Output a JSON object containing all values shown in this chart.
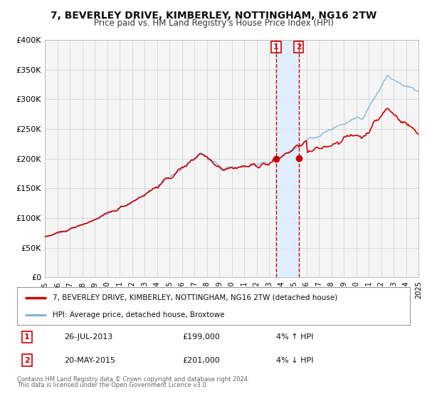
{
  "title": "7, BEVERLEY DRIVE, KIMBERLEY, NOTTINGHAM, NG16 2TW",
  "subtitle": "Price paid vs. HM Land Registry's House Price Index (HPI)",
  "legend_label1": "7, BEVERLEY DRIVE, KIMBERLEY, NOTTINGHAM, NG16 2TW (detached house)",
  "legend_label2": "HPI: Average price, detached house, Broxtowe",
  "annotation1_label": "1",
  "annotation1_date": "26-JUL-2013",
  "annotation1_price": "£199,000",
  "annotation1_hpi": "4% ↑ HPI",
  "annotation1_year": 2013.57,
  "annotation1_value": 199000,
  "annotation2_label": "2",
  "annotation2_date": "20-MAY-2015",
  "annotation2_price": "£201,000",
  "annotation2_hpi": "4% ↓ HPI",
  "annotation2_year": 2015.38,
  "annotation2_value": 201000,
  "color_line1": "#cc0000",
  "color_line2": "#7ab0d4",
  "color_dot": "#cc0000",
  "color_shading": "#ddeeff",
  "color_vline": "#cc0000",
  "ylim": [
    0,
    400000
  ],
  "yticks": [
    0,
    50000,
    100000,
    150000,
    200000,
    250000,
    300000,
    350000,
    400000
  ],
  "ytick_labels": [
    "£0",
    "£50K",
    "£100K",
    "£150K",
    "£200K",
    "£250K",
    "£300K",
    "£350K",
    "£400K"
  ],
  "footer_line1": "Contains HM Land Registry data © Crown copyright and database right 2024.",
  "footer_line2": "This data is licensed under the Open Government Licence v3.0.",
  "background_color": "#ffffff",
  "plot_bg_color": "#f5f5f5"
}
